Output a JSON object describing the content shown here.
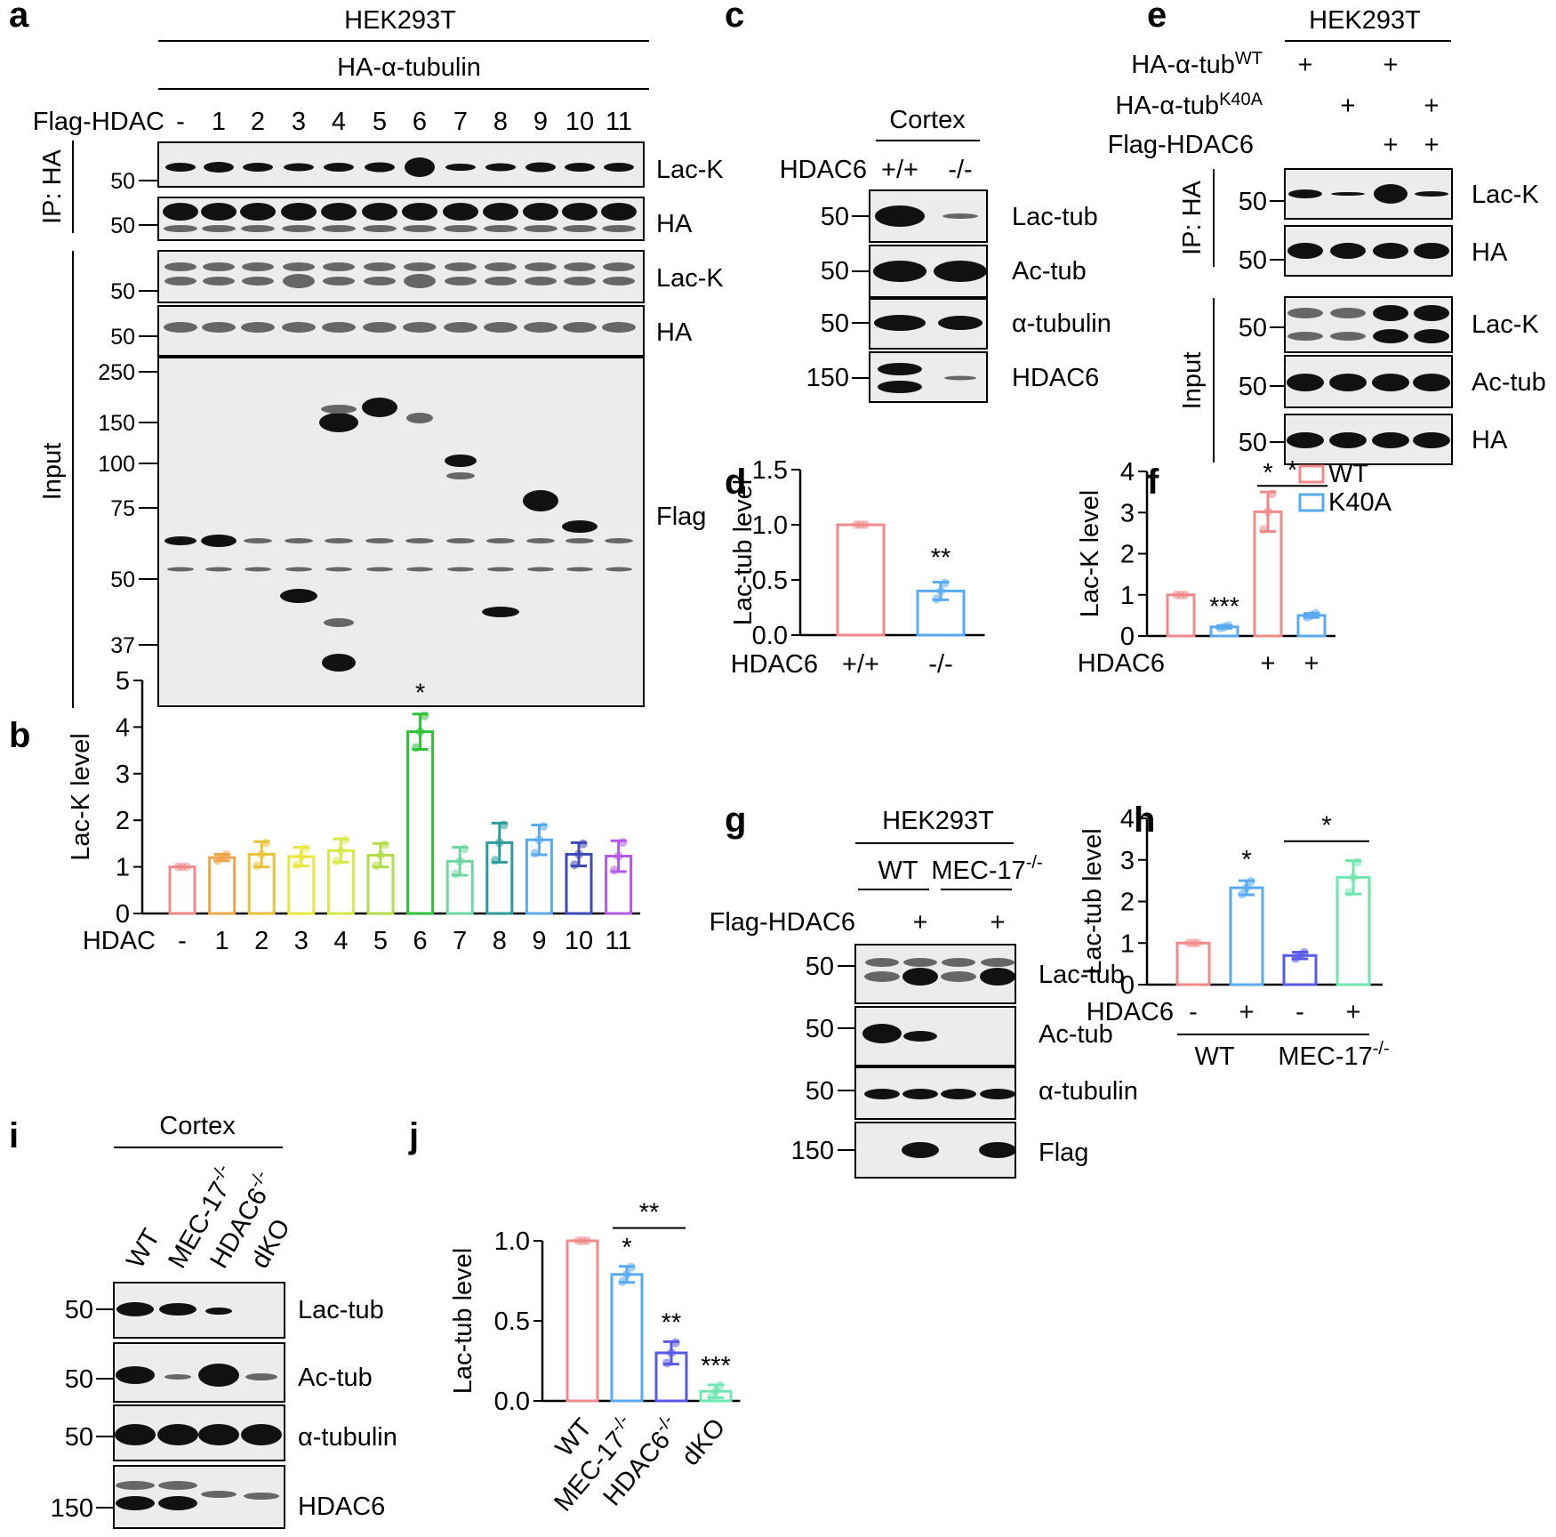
{
  "panels": {
    "a": "a",
    "b": "b",
    "c": "c",
    "d": "d",
    "e": "e",
    "f": "f",
    "g": "g",
    "h": "h",
    "i": "i",
    "j": "j"
  },
  "panel_a": {
    "cell_line": "HEK293T",
    "transfection": "HA-α-tubulin",
    "lane_header": "Flag-HDAC",
    "lanes": [
      "-",
      "1",
      "2",
      "3",
      "4",
      "5",
      "6",
      "7",
      "8",
      "9",
      "10",
      "11"
    ],
    "ip_label": "IP: HA",
    "input_label": "Input",
    "blots": [
      "Lac-K",
      "HA",
      "Lac-K",
      "HA",
      "Flag"
    ],
    "mw_ip": [
      "50",
      "50"
    ],
    "mw_input": [
      "50",
      "50"
    ],
    "mw_flag": [
      "250",
      "150",
      "100",
      "75",
      "50",
      "37"
    ]
  },
  "panel_c": {
    "tissue": "Cortex",
    "genotype_label": "HDAC6",
    "genotypes": [
      "+/+",
      "-/-"
    ],
    "blots": [
      "Lac-tub",
      "Ac-tub",
      "α-tubulin",
      "HDAC6"
    ],
    "mw": [
      "50",
      "50",
      "50",
      "150"
    ]
  },
  "panel_e": {
    "cell_line": "HEK293T",
    "rows": [
      {
        "label": "HA-α-tub",
        "sup": "WT",
        "marks": [
          "+",
          "",
          "+",
          ""
        ]
      },
      {
        "label": "HA-α-tub",
        "sup": "K40A",
        "marks": [
          "",
          "+",
          "",
          "+"
        ]
      },
      {
        "label": "Flag-HDAC6",
        "sup": "",
        "marks": [
          "",
          "",
          "+",
          "+"
        ]
      }
    ],
    "ip_label": "IP: HA",
    "input_label": "Input",
    "blots": [
      "Lac-K",
      "HA",
      "Lac-K",
      "Ac-tub",
      "HA"
    ],
    "mw": [
      "50",
      "50",
      "50",
      "50",
      "50"
    ]
  },
  "panel_g": {
    "cell_line": "HEK293T",
    "groups": [
      "WT",
      "MEC-17"
    ],
    "group_sup": "-/-",
    "row_label": "Flag-HDAC6",
    "marks": [
      "",
      "+",
      "",
      "+"
    ],
    "blots": [
      "Lac-tub",
      "Ac-tub",
      "α-tubulin",
      "Flag"
    ],
    "mw": [
      "50",
      "50",
      "50",
      "150"
    ]
  },
  "panel_i": {
    "tissue": "Cortex",
    "lanes": [
      {
        "label": "WT",
        "sup": ""
      },
      {
        "label": "MEC-17",
        "sup": "-/-"
      },
      {
        "label": "HDAC6",
        "sup": "-/-"
      },
      {
        "label": "dKO",
        "sup": ""
      }
    ],
    "blots": [
      "Lac-tub",
      "Ac-tub",
      "α-tubulin",
      "HDAC6"
    ],
    "mw": [
      "50",
      "50",
      "50",
      "150"
    ]
  },
  "chart_data": [
    {
      "id": "b",
      "type": "bar",
      "ylabel": "Lac-K level",
      "xlabel": "HDAC",
      "categories": [
        "-",
        "1",
        "2",
        "3",
        "4",
        "5",
        "6",
        "7",
        "8",
        "9",
        "10",
        "11"
      ],
      "values": [
        1.0,
        1.2,
        1.27,
        1.22,
        1.35,
        1.25,
        3.9,
        1.12,
        1.52,
        1.58,
        1.27,
        1.23
      ],
      "errors": [
        0.0,
        0.07,
        0.27,
        0.2,
        0.25,
        0.25,
        0.38,
        0.3,
        0.42,
        0.32,
        0.25,
        0.33
      ],
      "colors": [
        "#f08a8a",
        "#f0a54a",
        "#e8c23a",
        "#e8e840",
        "#d8e84a",
        "#b0dd48",
        "#2ec23a",
        "#6fd6a0",
        "#2e9a9a",
        "#5aaaf0",
        "#3e4ab8",
        "#b55ae8"
      ],
      "ylim": [
        0,
        5
      ],
      "yticks": [
        "0",
        "1",
        "2",
        "3",
        "4",
        "5"
      ],
      "significance": [
        "",
        "",
        "",
        "",
        "",
        "",
        "*",
        "",
        "",
        "",
        "",
        ""
      ]
    },
    {
      "id": "d",
      "type": "bar",
      "ylabel": "Lac-tub level",
      "xlabel": "HDAC6",
      "categories": [
        "+/+",
        "-/-"
      ],
      "values": [
        1.0,
        0.4
      ],
      "errors": [
        0.0,
        0.08
      ],
      "colors": [
        "#f08a8a",
        "#5aaaf0"
      ],
      "ylim": [
        0,
        1.5
      ],
      "yticks": [
        "0.0",
        "0.5",
        "1.0",
        "1.5"
      ],
      "significance": [
        "",
        "**"
      ]
    },
    {
      "id": "f",
      "type": "bar",
      "ylabel": "Lac-K level",
      "xlabel": "HDAC6",
      "categories": [
        "",
        "",
        "+",
        "+"
      ],
      "values": [
        1.0,
        0.22,
        3.02,
        0.5
      ],
      "errors": [
        0.0,
        0.03,
        0.48,
        0.05
      ],
      "colors": [
        "#f08a8a",
        "#5aaaf0",
        "#f08a8a",
        "#5aaaf0"
      ],
      "legend": [
        "WT",
        "K40A"
      ],
      "legend_colors": [
        "#f08a8a",
        "#5aaaf0"
      ],
      "ylim": [
        0,
        4
      ],
      "yticks": [
        "0",
        "1",
        "2",
        "3",
        "4"
      ],
      "significance": [
        "",
        "***",
        "*",
        ""
      ],
      "bracket": "*"
    },
    {
      "id": "h",
      "type": "bar",
      "ylabel": "Lac-tub level",
      "xlabel": "HDAC6",
      "categories": [
        "-",
        "+",
        "-",
        "+"
      ],
      "groups": [
        "WT",
        "MEC-17"
      ],
      "group_sup": "-/-",
      "values": [
        1.0,
        2.33,
        0.7,
        2.58
      ],
      "errors": [
        0.0,
        0.17,
        0.08,
        0.4
      ],
      "colors": [
        "#f08a8a",
        "#5aaaf0",
        "#5a5ae8",
        "#6fe6b0"
      ],
      "ylim": [
        0,
        4
      ],
      "yticks": [
        "0",
        "1",
        "2",
        "3",
        "4"
      ],
      "significance": [
        "",
        "*",
        "",
        ""
      ],
      "bracket": "*"
    },
    {
      "id": "j",
      "type": "bar",
      "ylabel": "Lac-tub level",
      "categories": [
        {
          "label": "WT",
          "sup": ""
        },
        {
          "label": "MEC-17",
          "sup": "-/-"
        },
        {
          "label": "HDAC6",
          "sup": "-/-"
        },
        {
          "label": "dKO",
          "sup": ""
        }
      ],
      "values": [
        1.0,
        0.79,
        0.3,
        0.06
      ],
      "errors": [
        0.0,
        0.05,
        0.07,
        0.04
      ],
      "colors": [
        "#f08a8a",
        "#5aaaf0",
        "#5a5ae8",
        "#6fe6b0"
      ],
      "ylim": [
        0,
        1.0
      ],
      "yticks": [
        "0.0",
        "0.5",
        "1.0"
      ],
      "significance": [
        "",
        "*",
        "**",
        "***"
      ],
      "bracket": "**"
    }
  ]
}
